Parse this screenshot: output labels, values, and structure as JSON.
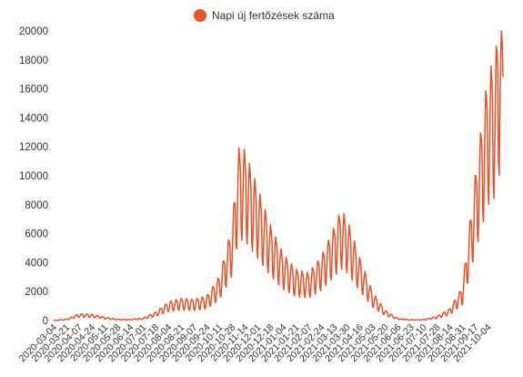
{
  "chart_data": {
    "type": "line",
    "legend": {
      "label": "Napi új fertőzések száma",
      "placement": "top-center",
      "marker": "circle"
    },
    "series": [
      {
        "name": "Napi új fertőzések száma",
        "color": "#e8532a"
      }
    ],
    "ylim": [
      0,
      20000
    ],
    "y_ticks": [
      "0",
      "2000",
      "4000",
      "6000",
      "8000",
      "10000",
      "12000",
      "14000",
      "16000",
      "18000",
      "20000"
    ],
    "grid": false,
    "x_tick_labels": [
      "2020-03-04",
      "2020-03-21",
      "2020-04-07",
      "2020-04-24",
      "2020-05-11",
      "2020-05-28",
      "2020-06-14",
      "2020-07-01",
      "2020-07-18",
      "2020-08-04",
      "2020-08-21",
      "2020-09-07",
      "2020-09-24",
      "2020-10-11",
      "2020-10-28",
      "2020-11-14",
      "2020-12-01",
      "2020-12-18",
      "2021-01-04",
      "2021-01-21",
      "2021-02-07",
      "2021-02-24",
      "2021-03-13",
      "2021-03-30",
      "2021-04-16",
      "2021-05-03",
      "2021-05-20",
      "2021-06-06",
      "2021-06-23",
      "2021-07-10",
      "2021-07-28",
      "2021-08-14",
      "2021-08-31",
      "2021-09-17",
      "2021-10-04"
    ],
    "x_range": [
      "2020-03-04",
      "2021-10-24"
    ],
    "key_points": [
      {
        "x": "2020-03-04",
        "y": 0
      },
      {
        "x": "2020-03-21",
        "y": 80
      },
      {
        "x": "2020-04-07",
        "y": 400
      },
      {
        "x": "2020-04-24",
        "y": 380
      },
      {
        "x": "2020-05-11",
        "y": 200
      },
      {
        "x": "2020-05-28",
        "y": 80
      },
      {
        "x": "2020-06-14",
        "y": 60
      },
      {
        "x": "2020-07-01",
        "y": 150
      },
      {
        "x": "2020-07-18",
        "y": 500
      },
      {
        "x": "2020-08-04",
        "y": 1100
      },
      {
        "x": "2020-08-21",
        "y": 1300
      },
      {
        "x": "2020-09-07",
        "y": 1250
      },
      {
        "x": "2020-09-24",
        "y": 1450
      },
      {
        "x": "2020-10-11",
        "y": 2600
      },
      {
        "x": "2020-10-28",
        "y": 5600
      },
      {
        "x": "2020-11-05",
        "y": 10100
      },
      {
        "x": "2020-11-14",
        "y": 10000
      },
      {
        "x": "2020-11-20",
        "y": 9200
      },
      {
        "x": "2020-12-01",
        "y": 7800
      },
      {
        "x": "2020-12-18",
        "y": 5600
      },
      {
        "x": "2021-01-04",
        "y": 3900
      },
      {
        "x": "2021-01-21",
        "y": 3000
      },
      {
        "x": "2021-02-07",
        "y": 2800
      },
      {
        "x": "2021-02-24",
        "y": 3800
      },
      {
        "x": "2021-03-13",
        "y": 5500
      },
      {
        "x": "2021-03-22",
        "y": 6500
      },
      {
        "x": "2021-03-30",
        "y": 6000
      },
      {
        "x": "2021-04-16",
        "y": 3700
      },
      {
        "x": "2021-05-03",
        "y": 1700
      },
      {
        "x": "2021-05-20",
        "y": 600
      },
      {
        "x": "2021-06-06",
        "y": 120
      },
      {
        "x": "2021-06-23",
        "y": 50
      },
      {
        "x": "2021-07-10",
        "y": 60
      },
      {
        "x": "2021-07-28",
        "y": 250
      },
      {
        "x": "2021-08-14",
        "y": 700
      },
      {
        "x": "2021-08-31",
        "y": 2000
      },
      {
        "x": "2021-09-17",
        "y": 8500
      },
      {
        "x": "2021-10-04",
        "y": 14500
      },
      {
        "x": "2021-10-14",
        "y": 15500
      },
      {
        "x": "2021-10-20",
        "y": 18800
      },
      {
        "x": "2021-10-24",
        "y": 16500
      }
    ],
    "weekly_oscillation": "daily counts dip sharply on weekends, giving a saw-tooth pattern whose amplitude grows with the level"
  }
}
